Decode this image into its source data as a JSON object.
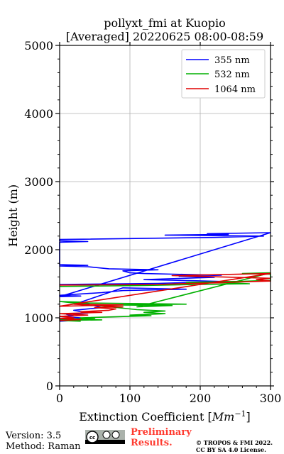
{
  "chart_data": {
    "type": "line",
    "title": "pollyxt_fmi at Kuopio",
    "subtitle": "[Averaged] 20220625 08:00-08:59",
    "xlabel": "Extinction Coefficient [Mm⁻¹]",
    "ylabel": "Height (m)",
    "xlim": [
      0,
      300
    ],
    "ylim": [
      0,
      5000
    ],
    "xticks": [
      "0",
      "100",
      "200",
      "300"
    ],
    "yticks": [
      "0",
      "1000",
      "2000",
      "3000",
      "4000",
      "5000"
    ],
    "grid": true,
    "legend_position": "top-right",
    "series": [
      {
        "name": "355 nm",
        "color": "#0000ff",
        "points": [
          [
            0,
            1490
          ],
          [
            140,
            1505
          ],
          [
            190,
            1520
          ],
          [
            240,
            1530
          ],
          [
            190,
            1545
          ],
          [
            120,
            1560
          ],
          [
            220,
            1595
          ],
          [
            170,
            1610
          ],
          [
            230,
            1625
          ],
          [
            120,
            1650
          ],
          [
            100,
            1660
          ],
          [
            90,
            1690
          ],
          [
            140,
            1705
          ],
          [
            70,
            1720
          ],
          [
            40,
            1750
          ],
          [
            0,
            1760
          ],
          [
            40,
            1770
          ],
          [
            0,
            1780
          ],
          [
            0,
            2110
          ],
          [
            40,
            2120
          ],
          [
            0,
            2130
          ],
          [
            0,
            2150
          ],
          [
            220,
            2180
          ],
          [
            290,
            2200
          ],
          [
            150,
            2215
          ],
          [
            240,
            2225
          ],
          [
            210,
            2235
          ],
          [
            300,
            2250
          ],
          [
            0,
            1310
          ],
          [
            30,
            1320
          ],
          [
            0,
            1330
          ],
          [
            60,
            1370
          ],
          [
            90,
            1400
          ],
          [
            180,
            1420
          ],
          [
            90,
            1440
          ],
          [
            30,
            1230
          ],
          [
            60,
            1150
          ],
          [
            20,
            1110
          ],
          [
            40,
            1070
          ],
          [
            10,
            1050
          ],
          [
            20,
            1030
          ],
          [
            0,
            1020
          ],
          [
            30,
            1000
          ],
          [
            0,
            980
          ],
          [
            20,
            960
          ],
          [
            0,
            950
          ]
        ]
      },
      {
        "name": "532 nm",
        "color": "#00b000",
        "points": [
          [
            0,
            1460
          ],
          [
            120,
            1475
          ],
          [
            200,
            1490
          ],
          [
            270,
            1500
          ],
          [
            250,
            1510
          ],
          [
            180,
            1520
          ],
          [
            260,
            1535
          ],
          [
            300,
            1550
          ],
          [
            300,
            1640
          ],
          [
            260,
            1650
          ],
          [
            300,
            1660
          ],
          [
            110,
            1160
          ],
          [
            160,
            1180
          ],
          [
            70,
            1190
          ],
          [
            180,
            1200
          ],
          [
            100,
            1210
          ],
          [
            20,
            1220
          ],
          [
            30,
            1230
          ],
          [
            0,
            1240
          ],
          [
            110,
            1120
          ],
          [
            150,
            1100
          ],
          [
            120,
            1080
          ],
          [
            150,
            1060
          ],
          [
            100,
            1040
          ],
          [
            130,
            1030
          ],
          [
            30,
            1000
          ],
          [
            50,
            990
          ],
          [
            0,
            980
          ],
          [
            60,
            970
          ],
          [
            0,
            960
          ],
          [
            30,
            950
          ]
        ]
      },
      {
        "name": "1064 nm",
        "color": "#e00000",
        "points": [
          [
            0,
            1480
          ],
          [
            140,
            1490
          ],
          [
            170,
            1500
          ],
          [
            230,
            1515
          ],
          [
            250,
            1525
          ],
          [
            300,
            1540
          ],
          [
            280,
            1560
          ],
          [
            300,
            1580
          ],
          [
            160,
            1620
          ],
          [
            300,
            1650
          ],
          [
            0,
            1170
          ],
          [
            90,
            1190
          ],
          [
            20,
            1200
          ],
          [
            90,
            1160
          ],
          [
            50,
            1150
          ],
          [
            80,
            1130
          ],
          [
            70,
            1110
          ],
          [
            30,
            1090
          ],
          [
            60,
            1080
          ],
          [
            0,
            1060
          ],
          [
            40,
            1040
          ],
          [
            0,
            1020
          ],
          [
            20,
            1000
          ],
          [
            0,
            990
          ],
          [
            30,
            975
          ],
          [
            0,
            960
          ]
        ]
      }
    ]
  },
  "footer": {
    "version": "Version: 3.5",
    "method": "Method: Raman",
    "preliminary_line1": "Preliminary",
    "preliminary_line2": "Results.",
    "copyright_line1": "© TROPOS & FMI 2022.",
    "copyright_line2": "CC BY SA 4.0 License."
  }
}
